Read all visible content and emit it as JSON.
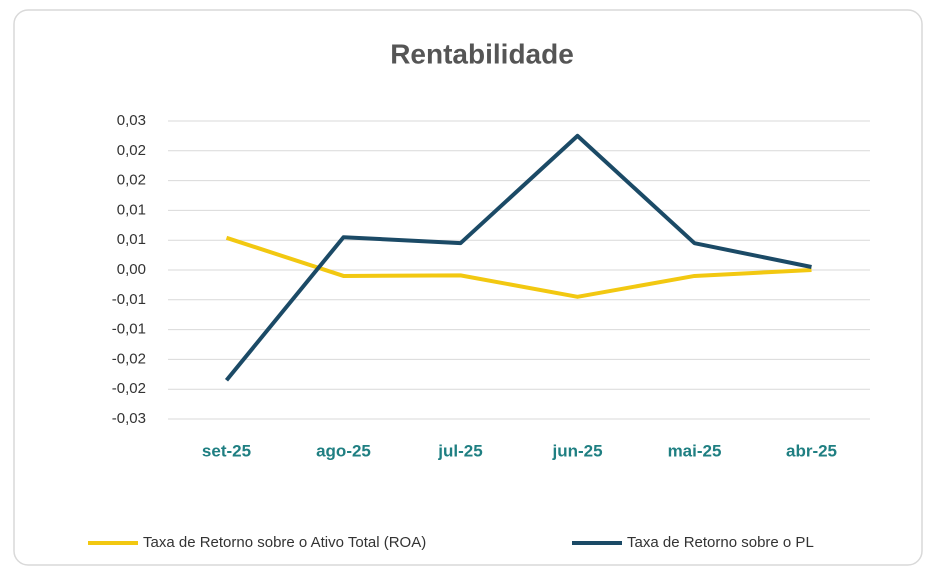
{
  "chart_data": {
    "type": "line",
    "title": "Rentabilidade",
    "categories": [
      "set-25",
      "ago-25",
      "jul-25",
      "jun-25",
      "mai-25",
      "abr-25"
    ],
    "series": [
      {
        "name": "Taxa de Retorno sobre o Ativo Total (ROA)",
        "color": "#f2c811",
        "values": [
          0.0054,
          -0.001,
          -0.0009,
          -0.0045,
          -0.001,
          0
        ]
      },
      {
        "name": "Taxa de Retorno sobre o PL",
        "color": "#1b4a66",
        "values": [
          -0.0185,
          0.0055,
          0.0045,
          0.0225,
          0.0045,
          0.0005
        ]
      }
    ],
    "ylim": [
      -0.025,
      0.025
    ],
    "yticks": [
      {
        "value": 0.025,
        "label": "0,03"
      },
      {
        "value": 0.02,
        "label": "0,02"
      },
      {
        "value": 0.015,
        "label": "0,02"
      },
      {
        "value": 0.01,
        "label": "0,01"
      },
      {
        "value": 0.005,
        "label": "0,01"
      },
      {
        "value": 0,
        "label": "0,00"
      },
      {
        "value": -0.005,
        "label": "-0,01"
      },
      {
        "value": -0.01,
        "label": "-0,01"
      },
      {
        "value": -0.015,
        "label": "-0,02"
      },
      {
        "value": -0.02,
        "label": "-0,02"
      },
      {
        "value": -0.025,
        "label": "-0,03"
      }
    ],
    "grid": true,
    "legend": "bottom"
  }
}
